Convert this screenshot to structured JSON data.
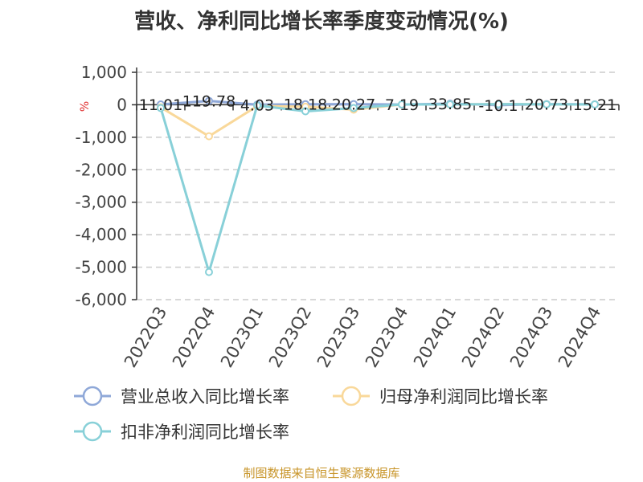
{
  "title": "营收、净利同比增长率季度变动情况(%)",
  "source": "制图数据来自恒生聚源数据库",
  "colors": {
    "revenue": "#8fa8d8",
    "net_profit": "#f9d89a",
    "deducted_profit": "#88d0d8",
    "axis": "#333333",
    "grid": "#cccccc",
    "unit": "#e03030"
  },
  "chart_data": {
    "type": "line",
    "title": "营收、净利同比增长率季度变动情况(%)",
    "ylabel": "%",
    "ylim": [
      -6000,
      1000
    ],
    "yticks": [
      1000,
      0,
      -1000,
      -2000,
      -3000,
      -4000,
      -5000,
      -6000
    ],
    "ytick_labels": [
      "1,000",
      "0",
      "-1,000",
      "-2,000",
      "-3,000",
      "-4,000",
      "-5,000",
      "-6,000"
    ],
    "categories": [
      "2022Q3",
      "2022Q4",
      "2023Q1",
      "2023Q2",
      "2023Q3",
      "2023Q4",
      "2024Q1",
      "2024Q2",
      "2024Q3",
      "2024Q4"
    ],
    "grid": true,
    "legend_position": "bottom",
    "series": [
      {
        "name": "营业总收入同比增长率",
        "color": "#8fa8d8",
        "values": [
          11.01,
          119.78,
          4.03,
          18.18,
          20.27,
          7.19,
          33.85,
          -10.1,
          20.73,
          15.21
        ],
        "data_labels": [
          "11.01",
          "119.78",
          "4.03",
          "18.18",
          "20.27",
          "7.19",
          "33.85",
          "-10.1",
          "20.73",
          "15.21"
        ]
      },
      {
        "name": "归母净利润同比增长率",
        "color": "#f9d89a",
        "values": [
          -80,
          -970,
          -40,
          -60,
          -150,
          10,
          10,
          20,
          15,
          10
        ]
      },
      {
        "name": "扣非净利润同比增长率",
        "color": "#88d0d8",
        "values": [
          -100,
          -5150,
          -20,
          -200,
          -100,
          10,
          10,
          20,
          15,
          10
        ]
      }
    ]
  }
}
